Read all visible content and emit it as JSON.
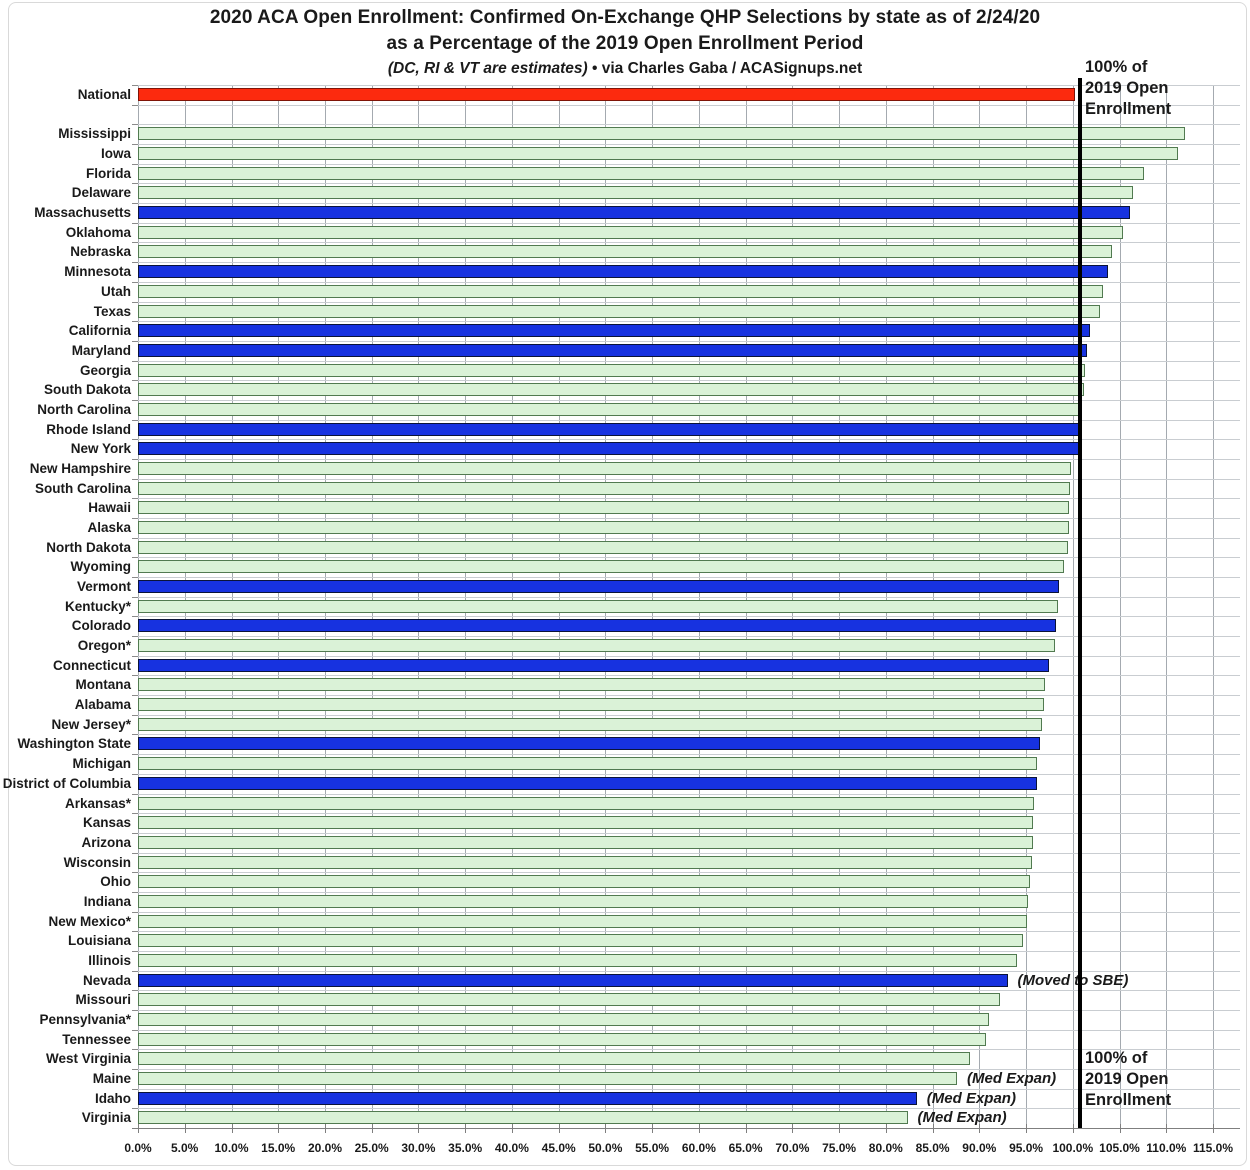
{
  "title": {
    "line1": "2020 ACA Open Enrollment: Confirmed On-Exchange QHP Selections by state as of 2/24/20",
    "line2": "as a Percentage of the 2019 Open Enrollment Period",
    "note_italic": "(DC, RI & VT are estimates)",
    "note_rest": " • via Charles Gaba / ACASignups.net"
  },
  "reference": {
    "label": "100% of\n2019 Open\nEnrollment",
    "value_pct": 100
  },
  "colors": {
    "red": "#fc2a0e",
    "blue": "#1732e0",
    "green": "#daf2d7",
    "green_border": "#517a50",
    "reference_line": "#000000",
    "gridline": "#a4aab0"
  },
  "chart_data": {
    "type": "bar",
    "orientation": "horizontal",
    "title": "2020 ACA Open Enrollment: Confirmed On-Exchange QHP Selections by state as of 2/24/20 as a Percentage of the 2019 Open Enrollment Period",
    "subtitle": "(DC, RI & VT are estimates) • via Charles Gaba / ACASignups.net",
    "xlabel": "",
    "ylabel": "",
    "xlim": [
      0,
      115
    ],
    "gridline_interval_pct": 5,
    "grid": true,
    "legend_position": "none",
    "reference_line": {
      "value": 100,
      "label": "100% of 2019 Open Enrollment"
    },
    "x_tick_labels": [
      "0.0%",
      "5.0%",
      "10.0%",
      "15.0%",
      "20.0%",
      "25.0%",
      "30.0%",
      "35.0%",
      "40.0%",
      "45.0%",
      "50.0%",
      "55.0%",
      "60.0%",
      "65.0%",
      "70.0%",
      "75.0%",
      "80.0%",
      "85.0%",
      "90.0%",
      "95.0%",
      "100.0%",
      "105.0%",
      "110.0%",
      "115.0%"
    ],
    "bars": [
      {
        "label": "National",
        "value": 100.0,
        "color": "red"
      },
      {
        "label": "",
        "value": null,
        "color": "spacer"
      },
      {
        "label": "Mississippi",
        "value": 111.8,
        "color": "green"
      },
      {
        "label": "Iowa",
        "value": 111.0,
        "color": "green"
      },
      {
        "label": "Florida",
        "value": 107.4,
        "color": "green"
      },
      {
        "label": "Delaware",
        "value": 106.2,
        "color": "green"
      },
      {
        "label": "Massachusetts",
        "value": 105.9,
        "color": "blue"
      },
      {
        "label": "Oklahoma",
        "value": 105.2,
        "color": "green"
      },
      {
        "label": "Nebraska",
        "value": 104.0,
        "color": "green"
      },
      {
        "label": "Minnesota",
        "value": 103.5,
        "color": "blue"
      },
      {
        "label": "Utah",
        "value": 103.0,
        "color": "green"
      },
      {
        "label": "Texas",
        "value": 102.7,
        "color": "green"
      },
      {
        "label": "California",
        "value": 101.6,
        "color": "blue"
      },
      {
        "label": "Maryland",
        "value": 101.3,
        "color": "blue"
      },
      {
        "label": "Georgia",
        "value": 101.1,
        "color": "green"
      },
      {
        "label": "South Dakota",
        "value": 101.0,
        "color": "green"
      },
      {
        "label": "North Carolina",
        "value": 100.8,
        "color": "green"
      },
      {
        "label": "Rhode Island",
        "value": 100.5,
        "color": "blue"
      },
      {
        "label": "New York",
        "value": 100.5,
        "color": "blue"
      },
      {
        "label": "New Hampshire",
        "value": 99.6,
        "color": "green"
      },
      {
        "label": "South Carolina",
        "value": 99.5,
        "color": "green"
      },
      {
        "label": "Hawaii",
        "value": 99.4,
        "color": "green"
      },
      {
        "label": "Alaska",
        "value": 99.4,
        "color": "green"
      },
      {
        "label": "North Dakota",
        "value": 99.3,
        "color": "green"
      },
      {
        "label": "Wyoming",
        "value": 98.8,
        "color": "green"
      },
      {
        "label": "Vermont",
        "value": 98.3,
        "color": "blue"
      },
      {
        "label": "Kentucky*",
        "value": 98.2,
        "color": "green"
      },
      {
        "label": "Colorado",
        "value": 98.0,
        "color": "blue"
      },
      {
        "label": "Oregon*",
        "value": 97.9,
        "color": "green"
      },
      {
        "label": "Connecticut",
        "value": 97.2,
        "color": "blue"
      },
      {
        "label": "Montana",
        "value": 96.8,
        "color": "green"
      },
      {
        "label": "Alabama",
        "value": 96.7,
        "color": "green"
      },
      {
        "label": "New Jersey*",
        "value": 96.5,
        "color": "green"
      },
      {
        "label": "Washington State",
        "value": 96.3,
        "color": "blue"
      },
      {
        "label": "Michigan",
        "value": 96.0,
        "color": "green"
      },
      {
        "label": "District of Columbia",
        "value": 95.9,
        "color": "blue"
      },
      {
        "label": "Arkansas*",
        "value": 95.6,
        "color": "green"
      },
      {
        "label": "Kansas",
        "value": 95.5,
        "color": "green"
      },
      {
        "label": "Arizona",
        "value": 95.5,
        "color": "green"
      },
      {
        "label": "Wisconsin",
        "value": 95.4,
        "color": "green"
      },
      {
        "label": "Ohio",
        "value": 95.2,
        "color": "green"
      },
      {
        "label": "Indiana",
        "value": 95.0,
        "color": "green"
      },
      {
        "label": "New Mexico*",
        "value": 94.9,
        "color": "green"
      },
      {
        "label": "Louisiana",
        "value": 94.4,
        "color": "green"
      },
      {
        "label": "Illinois",
        "value": 93.8,
        "color": "green"
      },
      {
        "label": "Nevada",
        "value": 92.8,
        "color": "blue",
        "annotation": "(Moved to SBE)"
      },
      {
        "label": "Missouri",
        "value": 92.0,
        "color": "green"
      },
      {
        "label": "Pennsylvania*",
        "value": 90.8,
        "color": "green"
      },
      {
        "label": "Tennessee",
        "value": 90.5,
        "color": "green"
      },
      {
        "label": "West Virginia",
        "value": 88.8,
        "color": "green"
      },
      {
        "label": "Maine",
        "value": 87.4,
        "color": "green",
        "annotation": "(Med Expan)"
      },
      {
        "label": "Idaho",
        "value": 83.1,
        "color": "blue",
        "annotation": "(Med Expan)"
      },
      {
        "label": "Virginia",
        "value": 82.1,
        "color": "green",
        "annotation": "(Med Expan)"
      }
    ]
  }
}
